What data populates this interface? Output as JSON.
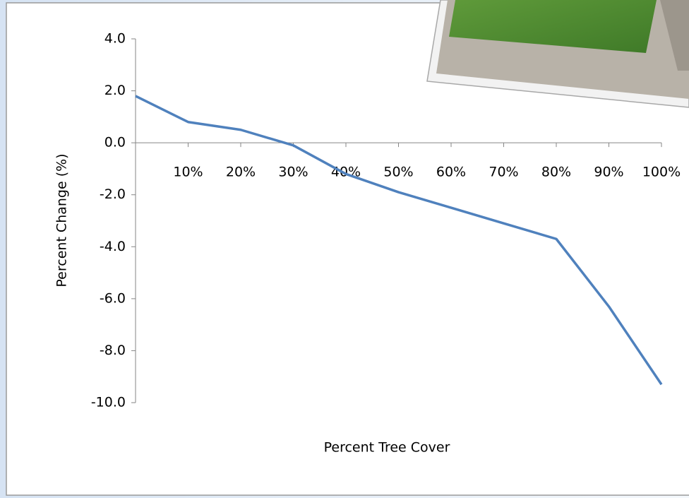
{
  "chart_data": {
    "type": "line",
    "x_label": "Percent Tree Cover",
    "y_label": "Percent  Change  (%)",
    "categories": [
      null,
      "10%",
      "20%",
      "30%",
      "40%",
      "50%",
      "60%",
      "70%",
      "80%",
      "90%",
      "100%"
    ],
    "values": [
      1.8,
      0.8,
      0.5,
      -0.1,
      -1.2,
      -1.9,
      -2.5,
      -3.1,
      -3.7,
      -6.3,
      -9.3
    ],
    "color": "#4f81bd",
    "ylim": [
      -10,
      4
    ],
    "yticks": [
      {
        "value": 4,
        "label": "4.0"
      },
      {
        "value": 2,
        "label": "2.0"
      },
      {
        "value": 0,
        "label": "0.0"
      },
      {
        "value": -2,
        "label": "-2.0"
      },
      {
        "value": -4,
        "label": "-4.0"
      },
      {
        "value": -6,
        "label": "-6.0"
      },
      {
        "value": -8,
        "label": "-8.0"
      },
      {
        "value": -10,
        "label": "-10.0"
      }
    ],
    "grid": false
  }
}
